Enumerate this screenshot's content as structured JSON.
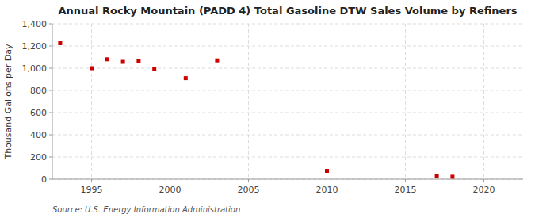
{
  "chart_data": {
    "type": "scatter",
    "title": "Annual Rocky Mountain (PADD 4) Total Gasoline DTW Sales Volume by Refiners",
    "ylabel": "Thousand Gallons per Day",
    "source": "Source: U.S. Energy Information Administration",
    "x": [
      1993,
      1995,
      1996,
      1997,
      1998,
      1999,
      2001,
      2003,
      2010,
      2017,
      2018
    ],
    "values": [
      1225,
      1000,
      1080,
      1057,
      1063,
      990,
      910,
      1070,
      75,
      30,
      22
    ],
    "color": "#cc0000",
    "marker": "square",
    "xlim": [
      1992.5,
      2022.5
    ],
    "ylim": [
      0,
      1400
    ],
    "xticks": [
      1995,
      2000,
      2005,
      2010,
      2015,
      2020
    ],
    "yticks": [
      0,
      200,
      400,
      600,
      800,
      {
        "value": 1000,
        "label": "1,000"
      },
      {
        "value": 1200,
        "label": "1,200"
      },
      {
        "value": 1400,
        "label": "1,400"
      }
    ],
    "grid": true
  }
}
